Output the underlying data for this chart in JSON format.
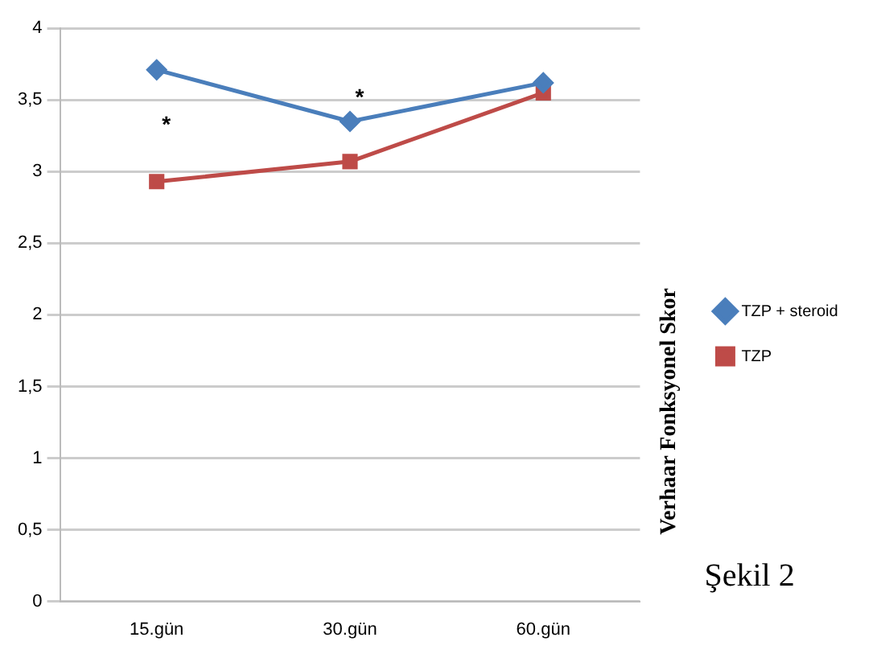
{
  "chart_data": {
    "type": "line",
    "ylabel": "Verhaar Fonksyonel Skor",
    "categories": [
      "15.gün",
      "30.gün",
      "60.gün"
    ],
    "series": [
      {
        "name": "TZP + steroid",
        "color": "#4a7ebb",
        "values": [
          3.71,
          3.35,
          3.62
        ],
        "marker": "diamond"
      },
      {
        "name": "TZP",
        "color": "#be4b48",
        "values": [
          2.93,
          3.07,
          3.55
        ],
        "marker": "square"
      }
    ],
    "ylim": [
      0,
      4
    ],
    "yticks": [
      {
        "value": 0,
        "label": "0"
      },
      {
        "value": 0.5,
        "label": "0,5"
      },
      {
        "value": 1,
        "label": "1"
      },
      {
        "value": 1.5,
        "label": "1,5"
      },
      {
        "value": 2,
        "label": "2"
      },
      {
        "value": 2.5,
        "label": "2,5"
      },
      {
        "value": 3,
        "label": "3"
      },
      {
        "value": 3.5,
        "label": "3,5"
      },
      {
        "value": 4,
        "label": "4"
      }
    ],
    "grid": "y",
    "legend": "right",
    "line_style": "solid",
    "annotations": [
      "*",
      "*",
      "Şekil 2"
    ]
  }
}
